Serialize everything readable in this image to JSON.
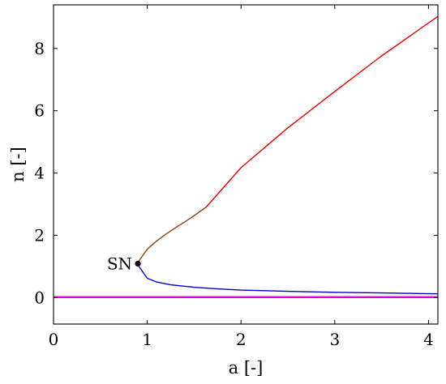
{
  "chart_data": {
    "type": "line",
    "xlabel": "a [-]",
    "ylabel": "n [-]",
    "xlim": [
      0,
      4.1
    ],
    "ylim": [
      -0.85,
      9.4
    ],
    "xticks": [
      0,
      1,
      2,
      3,
      4
    ],
    "yticks": [
      0,
      2,
      4,
      6,
      8
    ],
    "grid": false,
    "legend": "none",
    "series": [
      {
        "color": "#e00000",
        "segments": [
          {
            "x": [
              1.63,
              2.0,
              2.5,
              3.0,
              3.5,
              4.1
            ],
            "y": [
              2.91,
              4.17,
              5.45,
              6.62,
              7.76,
              9.03
            ]
          }
        ]
      },
      {
        "color": "#8b4513",
        "segments": [
          {
            "x": [
              0.9,
              1.0,
              1.1,
              1.2,
              1.3,
              1.4,
              1.5,
              1.63
            ],
            "y": [
              1.13,
              1.55,
              1.82,
              2.04,
              2.24,
              2.43,
              2.63,
              2.91
            ]
          },
          {
            "x": [
              0,
              4.1
            ],
            "y": [
              0,
              0
            ]
          }
        ]
      },
      {
        "color": "#0000c8",
        "segments": [
          {
            "x": [
              0.9,
              1.0,
              1.1,
              1.25,
              1.5,
              1.75,
              2.0,
              2.5,
              3.0,
              3.5,
              4.1
            ],
            "y": [
              1.05,
              0.62,
              0.5,
              0.41,
              0.33,
              0.28,
              0.24,
              0.2,
              0.17,
              0.15,
              0.12
            ]
          }
        ]
      },
      {
        "color": "#ff00ff",
        "segments": [
          {
            "x": [
              0,
              4.1
            ],
            "y": [
              0.03,
              0.03
            ]
          }
        ]
      }
    ],
    "annotations": [
      {
        "text": "SN",
        "x": 0.9,
        "y": 1.09
      }
    ]
  }
}
